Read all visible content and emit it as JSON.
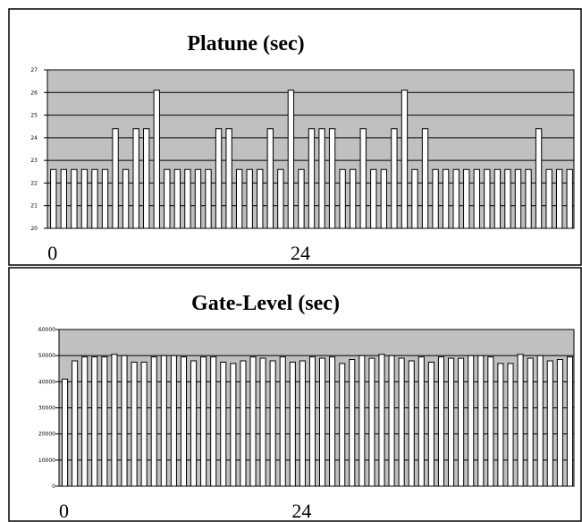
{
  "chart_data": [
    {
      "type": "bar",
      "title": "Platune (sec)",
      "xlabel": "",
      "ylabel": "",
      "ylim": [
        20,
        27
      ],
      "y_ticks": [
        "20",
        "21",
        "22",
        "23",
        "24",
        "25",
        "26",
        "27"
      ],
      "x_ticks": [
        {
          "index": 0,
          "label": "0"
        },
        {
          "index": 24,
          "label": "24"
        }
      ],
      "grid": true,
      "colors": {
        "plot_bg": "#c0c0c0",
        "bar_fill": "#ffffff",
        "bar_stroke": "#000000"
      },
      "values": [
        22.6,
        22.6,
        22.6,
        22.6,
        22.6,
        22.6,
        24.4,
        22.6,
        24.4,
        24.4,
        26.1,
        22.6,
        22.6,
        22.6,
        22.6,
        22.6,
        24.4,
        24.4,
        22.6,
        22.6,
        22.6,
        24.4,
        22.6,
        26.1,
        22.6,
        24.4,
        24.4,
        24.4,
        22.6,
        22.6,
        24.4,
        22.6,
        22.6,
        24.4,
        26.1,
        22.6,
        24.4,
        22.6,
        22.6,
        22.6,
        22.6,
        22.6,
        22.6,
        22.6,
        22.6,
        22.6,
        22.6,
        24.4,
        22.6,
        22.6,
        22.6
      ]
    },
    {
      "type": "bar",
      "title": "Gate-Level (sec)",
      "xlabel": "",
      "ylabel": "",
      "ylim": [
        0,
        60000
      ],
      "y_ticks": [
        "0",
        "10000",
        "20000",
        "30000",
        "40000",
        "50000",
        "60000"
      ],
      "x_ticks": [
        {
          "index": 0,
          "label": "0"
        },
        {
          "index": 24,
          "label": "24"
        }
      ],
      "grid": true,
      "colors": {
        "plot_bg": "#c0c0c0",
        "bar_fill": "#ffffff",
        "bar_stroke": "#000000"
      },
      "values": [
        41000,
        48000,
        49500,
        49500,
        49500,
        50500,
        50000,
        47500,
        47500,
        49500,
        50000,
        50000,
        49500,
        48000,
        49500,
        49500,
        47500,
        47000,
        48000,
        49500,
        49000,
        48000,
        49500,
        47500,
        48000,
        49500,
        49000,
        49500,
        47000,
        48500,
        50000,
        49000,
        50500,
        50000,
        49000,
        48000,
        49500,
        47500,
        49500,
        49000,
        49000,
        50000,
        50000,
        49500,
        47000,
        47000,
        50500,
        49000,
        50000,
        48000,
        48500,
        49500
      ]
    }
  ]
}
